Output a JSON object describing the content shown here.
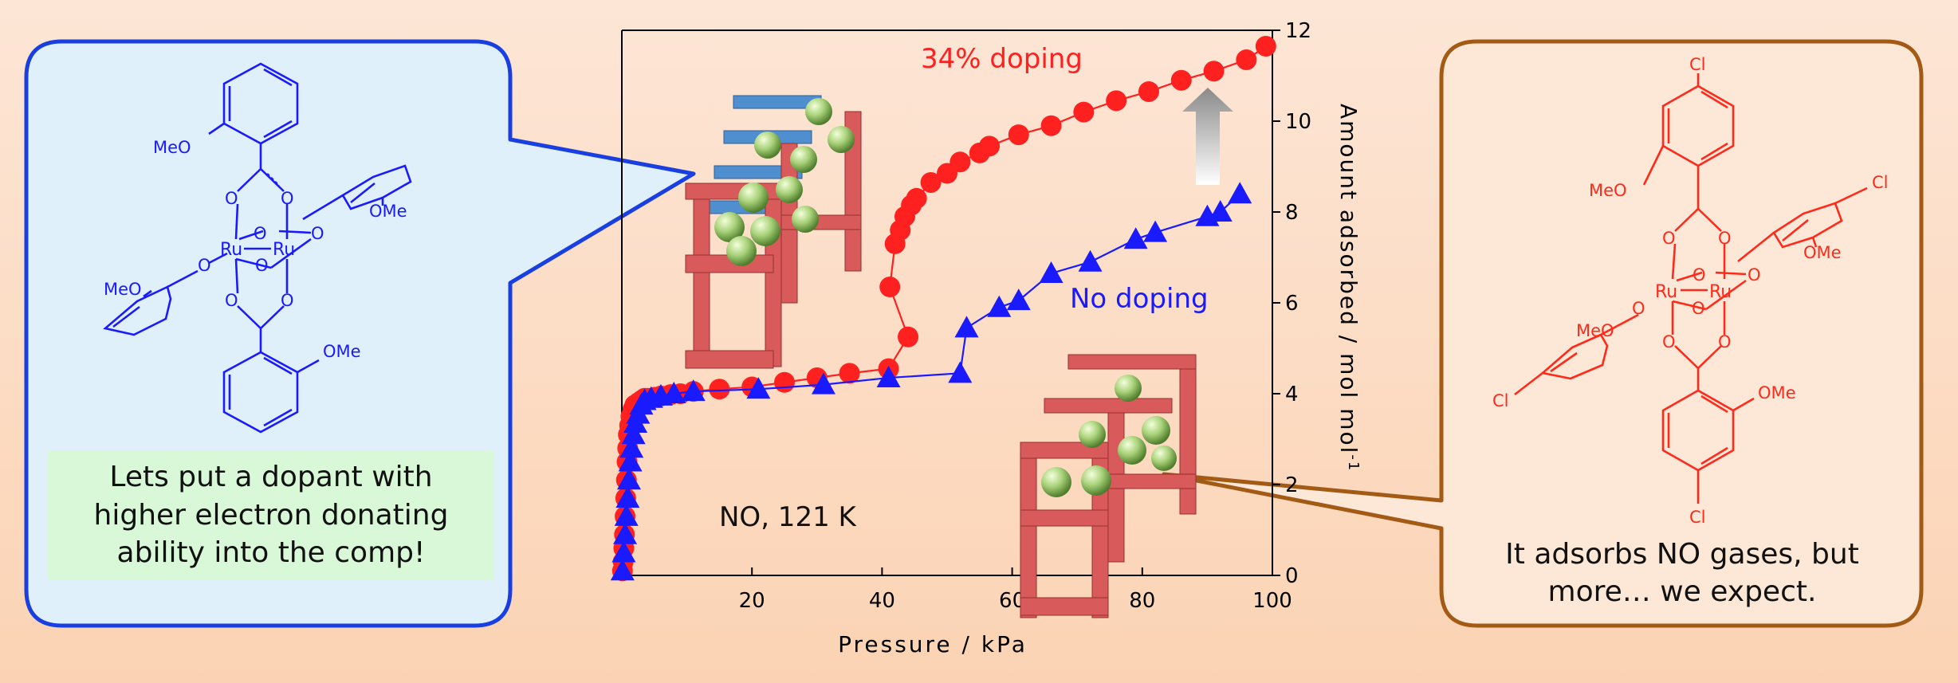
{
  "left_panel": {
    "caption": "Lets put a dopant with\nhigher electron donating\nability into the comp!",
    "labels": {
      "ru": "Ru",
      "o": "O",
      "ome": "OMe",
      "meo": "MeO"
    }
  },
  "right_panel": {
    "caption": "It adsorbs NO gases, but\nmore… we expect.",
    "labels": {
      "ru": "Ru",
      "o": "O",
      "ome": "OMe",
      "meo": "MeO",
      "cl": "Cl"
    }
  },
  "colors": {
    "doped": "#ff2020",
    "undoped": "#1a1aff",
    "left_border": "#1a3fe0",
    "right_border": "#a35a14",
    "left_fill": "#dff0fb",
    "right_fill": "#fde8d8",
    "caption_fill": "#d8f8d8"
  },
  "chart_data": {
    "type": "scatter",
    "xlabel": "Pressure / kPa",
    "ylabel": "Amount adsorbed / mol mol",
    "ylabel_sup": "-1",
    "xlim": [
      0,
      100
    ],
    "ylim": [
      0,
      12
    ],
    "x_ticks": [
      "20",
      "40",
      "60",
      "80",
      "100"
    ],
    "y_ticks": [
      "0",
      "2",
      "4",
      "6",
      "8",
      "10",
      "12"
    ],
    "annotation": "NO, 121 K",
    "series": [
      {
        "name": "34% doping",
        "marker": "circle",
        "x": [
          0.1,
          0.2,
          0.3,
          0.4,
          0.5,
          0.6,
          0.7,
          0.8,
          0.9,
          1.0,
          1.2,
          1.4,
          1.7,
          2.0,
          2.5,
          3.0,
          3.5,
          4.0,
          5.0,
          6.0,
          7.5,
          9,
          11,
          15,
          20,
          25,
          30,
          35,
          41,
          44,
          41.2,
          42,
          42.8,
          43.5,
          44.5,
          45.3,
          47.5,
          50,
          52,
          55,
          56.5,
          61,
          66,
          71,
          76,
          81,
          86,
          91,
          96,
          99
        ],
        "y": [
          0.1,
          0.3,
          0.6,
          0.9,
          1.3,
          1.7,
          2.1,
          2.5,
          2.8,
          3.1,
          3.3,
          3.5,
          3.65,
          3.75,
          3.8,
          3.85,
          3.9,
          3.9,
          3.92,
          3.95,
          3.98,
          4.0,
          4.05,
          4.1,
          4.15,
          4.25,
          4.35,
          4.45,
          4.55,
          5.25,
          6.35,
          7.3,
          7.6,
          7.9,
          8.15,
          8.3,
          8.65,
          8.85,
          9.1,
          9.3,
          9.45,
          9.7,
          9.9,
          10.2,
          10.45,
          10.65,
          10.9,
          11.1,
          11.35,
          11.65
        ]
      },
      {
        "name": "No doping",
        "marker": "triangle",
        "x": [
          0.1,
          0.3,
          0.5,
          0.7,
          0.9,
          1.1,
          1.3,
          1.5,
          1.8,
          2.1,
          2.5,
          3.0,
          3.5,
          4.5,
          6,
          8,
          11,
          21,
          31,
          41,
          52,
          53,
          58,
          61,
          66,
          72,
          79,
          82,
          90,
          92,
          95
        ],
        "y": [
          0.1,
          0.5,
          0.9,
          1.3,
          1.7,
          2.1,
          2.5,
          2.8,
          3.1,
          3.35,
          3.55,
          3.75,
          3.85,
          3.9,
          3.95,
          4.0,
          4.05,
          4.1,
          4.2,
          4.35,
          4.45,
          5.45,
          5.9,
          6.05,
          6.65,
          6.9,
          7.4,
          7.55,
          7.9,
          8.0,
          8.4
        ]
      }
    ]
  }
}
